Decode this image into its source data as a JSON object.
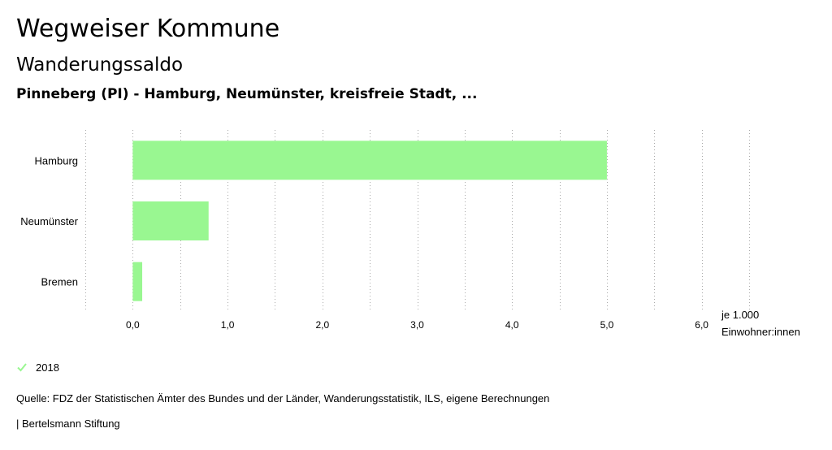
{
  "header": {
    "title": "Wegweiser Kommune",
    "subtitle": "Wanderungssaldo",
    "region": "Pinneberg (PI) - Hamburg, Neumünster, kreisfreie Stadt, ..."
  },
  "chart_data": {
    "type": "bar",
    "orientation": "horizontal",
    "categories": [
      "Hamburg",
      "Neumünster",
      "Bremen"
    ],
    "series": [
      {
        "name": "2018",
        "values": [
          5.0,
          0.8,
          0.1
        ],
        "color": "#99f791"
      }
    ],
    "xlim": [
      -0.5,
      6.5
    ],
    "x_ticks": [
      0,
      1,
      2,
      3,
      4,
      5,
      6
    ],
    "x_tick_labels": [
      "0,0",
      "1,0",
      "2,0",
      "3,0",
      "4,0",
      "5,0",
      "6,0"
    ],
    "unit_label": [
      "je 1.000",
      "Einwohner:innen"
    ],
    "grid": true
  },
  "legend": {
    "label": "2018",
    "icon": "check-icon",
    "color": "#99f791"
  },
  "footer": {
    "source": "Quelle: FDZ der Statistischen Ämter des Bundes und der Länder, Wanderungsstatistik, ILS, eigene Berechnungen",
    "credit": "| Bertelsmann Stiftung"
  }
}
